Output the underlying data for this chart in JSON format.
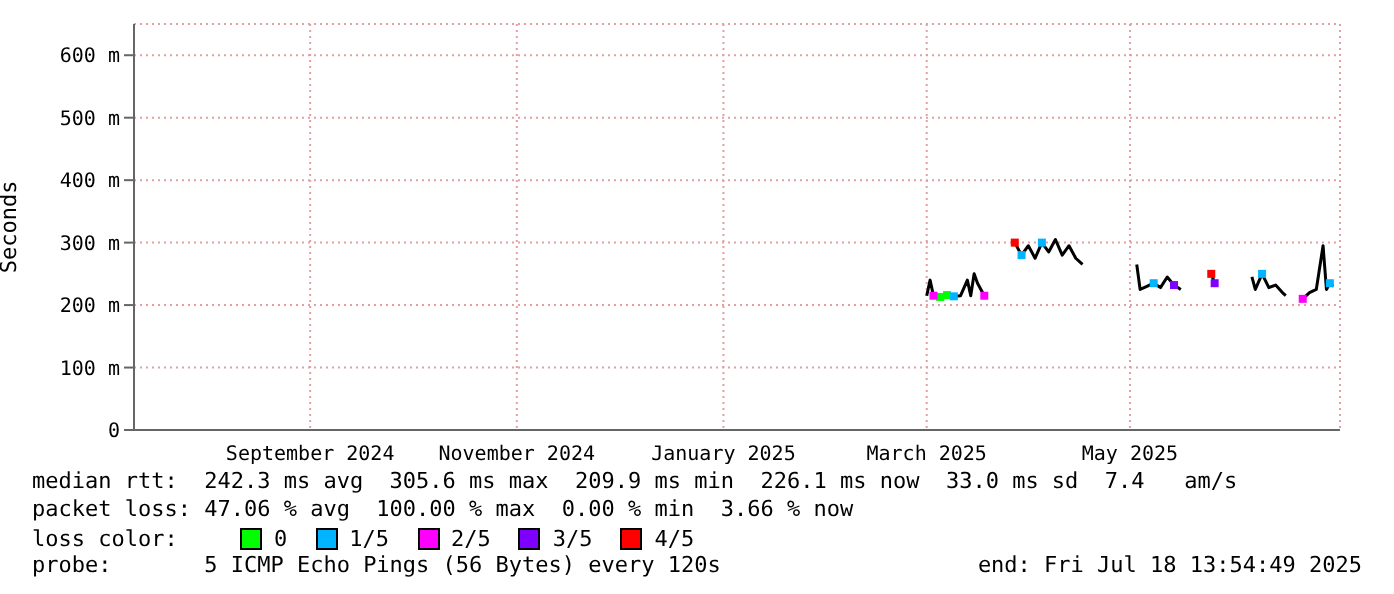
{
  "chart_data": {
    "type": "line",
    "ylabel": "Seconds",
    "xlim": [
      "2024-07-27",
      "2025-07-18"
    ],
    "xticks": [
      {
        "value": "2024-09-17",
        "label": "September 2024"
      },
      {
        "value": "2024-11-17",
        "label": "November 2024"
      },
      {
        "value": "2025-01-17",
        "label": "January 2025"
      },
      {
        "value": "2025-03-18",
        "label": "March 2025"
      },
      {
        "value": "2025-05-17",
        "label": "May 2025"
      }
    ],
    "ylim": [
      0,
      650
    ],
    "yticks": [
      0,
      {
        "value": 100,
        "label": "100 m"
      },
      {
        "value": 200,
        "label": "200 m"
      },
      {
        "value": 300,
        "label": "300 m"
      },
      {
        "value": 400,
        "label": "400 m"
      },
      {
        "value": 500,
        "label": "500 m"
      },
      {
        "value": 600,
        "label": "600 m"
      }
    ],
    "grid": true,
    "legend": "bottom left",
    "legend_title": "loss color:",
    "marker": "none",
    "series": [
      {
        "color": "#000000",
        "x": [
          "2025-03-18",
          "2025-03-19",
          "2025-03-20",
          "2025-03-22",
          "2025-03-24",
          "2025-03-26",
          "2025-03-28",
          "2025-03-30",
          "2025-03-31",
          "2025-04-01",
          "2025-04-02",
          "2025-04-04",
          "2025-04-09",
          "2025-04-13",
          "2025-04-15",
          "2025-04-17",
          "2025-04-19",
          "2025-04-21",
          "2025-04-23",
          "2025-04-25",
          "2025-04-27",
          "2025-04-29",
          "2025-05-01",
          "2025-05-03",
          "2025-05-10",
          "2025-05-19",
          "2025-05-20",
          "2025-05-22",
          "2025-05-24",
          "2025-05-26",
          "2025-05-28",
          "2025-05-30",
          "2025-06-01",
          "2025-06-05",
          "2025-06-10",
          "2025-06-11",
          "2025-06-16",
          "2025-06-22",
          "2025-06-23",
          "2025-06-25",
          "2025-06-27",
          "2025-06-29",
          "2025-07-01",
          "2025-07-02",
          "2025-07-05",
          "2025-07-07",
          "2025-07-09",
          "2025-07-11",
          "2025-07-13",
          "2025-07-14",
          "2025-07-15",
          "2025-07-16"
        ],
        "values": [
          215,
          240,
          215,
          213,
          216,
          214,
          215,
          240,
          215,
          250,
          235,
          215,
          null,
          300,
          280,
          295,
          275,
          300,
          285,
          305,
          280,
          295,
          275,
          265,
          null,
          265,
          225,
          230,
          235,
          228,
          245,
          232,
          225,
          null,
          250,
          235,
          null,
          245,
          225,
          250,
          228,
          232,
          220,
          215,
          null,
          210,
          220,
          225,
          295,
          225,
          235,
          230
        ]
      },
      {
        "name": "0",
        "type": "scatter",
        "marker": "square",
        "color": "#00ff00",
        "x": [
          "2025-03-22",
          "2025-03-24"
        ],
        "values": [
          213,
          216
        ]
      },
      {
        "name": "1/5",
        "type": "scatter",
        "marker": "square",
        "color": "#00b4ff",
        "x": [
          "2025-03-26",
          "2025-04-15",
          "2025-04-21",
          "2025-05-24",
          "2025-06-25",
          "2025-07-15"
        ],
        "values": [
          214,
          280,
          300,
          235,
          250,
          235
        ]
      },
      {
        "name": "2/5",
        "type": "scatter",
        "marker": "square",
        "color": "#ff00ff",
        "x": [
          "2025-03-20",
          "2025-04-04",
          "2025-07-07"
        ],
        "values": [
          215,
          215,
          210
        ]
      },
      {
        "name": "3/5",
        "type": "scatter",
        "marker": "square",
        "color": "#7e00ff",
        "x": [
          "2025-05-30",
          "2025-06-11"
        ],
        "values": [
          232,
          235
        ]
      },
      {
        "name": "4/5",
        "type": "scatter",
        "marker": "square",
        "color": "#ff0000",
        "x": [
          "2025-04-13",
          "2025-06-10"
        ],
        "values": [
          300,
          250
        ]
      }
    ],
    "annotations": [
      "median rtt:  242.3 ms avg  305.6 ms max  209.9 ms min  226.1 ms now  33.0 ms sd  7.4   am/s",
      "packet loss: 47.06 % avg  100.00 % max  0.00 % min  3.66 % now",
      "probe:       5 ICMP Echo Pings (56 Bytes) every 120s",
      "end: Fri Jul 18 13:54:49 2025"
    ]
  }
}
